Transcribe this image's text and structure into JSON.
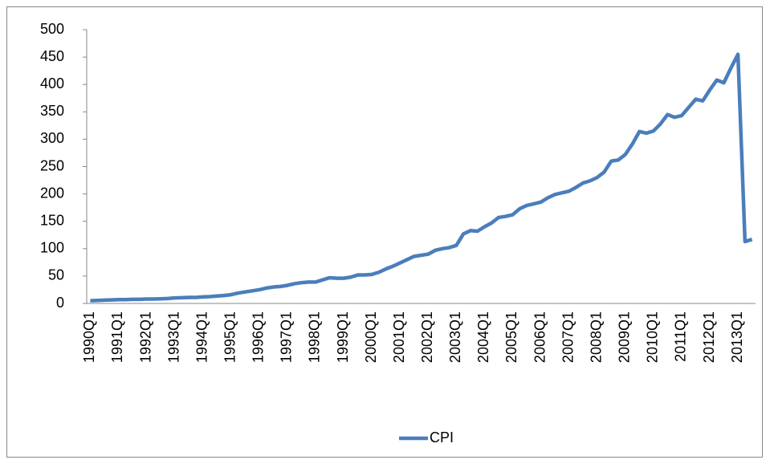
{
  "chart_data": {
    "type": "line",
    "categories": [
      "1990Q1",
      null,
      null,
      null,
      "1991Q1",
      null,
      null,
      null,
      "1992Q1",
      null,
      null,
      null,
      "1993Q1",
      null,
      null,
      null,
      "1994Q1",
      null,
      null,
      null,
      "1995Q1",
      null,
      null,
      null,
      "1996Q1",
      null,
      null,
      null,
      "1997Q1",
      null,
      null,
      null,
      "1998Q1",
      null,
      null,
      null,
      "1999Q1",
      null,
      null,
      null,
      "2000Q1",
      null,
      null,
      null,
      "2001Q1",
      null,
      null,
      null,
      "2002Q1",
      null,
      null,
      null,
      "2003Q1",
      null,
      null,
      null,
      "2004Q1",
      null,
      null,
      null,
      "2005Q1",
      null,
      null,
      null,
      "2006Q1",
      null,
      null,
      null,
      "2007Q1",
      null,
      null,
      null,
      "2008Q1",
      null,
      null,
      null,
      "2009Q1",
      null,
      null,
      null,
      "2010Q1",
      null,
      null,
      null,
      "2011Q1",
      null,
      null,
      null,
      "2012Q1",
      null,
      null,
      null,
      "2013Q1",
      null,
      null
    ],
    "series": [
      {
        "name": "CPI",
        "color": "#4a7ebb",
        "values": [
          5,
          5.5,
          6,
          6.5,
          7,
          7,
          7.5,
          7.5,
          8,
          8,
          8.5,
          9,
          10,
          10.5,
          11,
          11,
          12,
          12.5,
          13.5,
          14.5,
          16,
          19,
          21,
          23,
          25,
          28,
          30,
          31,
          33,
          36,
          38,
          39,
          39,
          43,
          47,
          46,
          46,
          48,
          52,
          52,
          53,
          57,
          63,
          68,
          74,
          80,
          86,
          88,
          90,
          97,
          100,
          102,
          106,
          127,
          133,
          132,
          140,
          147,
          157,
          159,
          162,
          173,
          179,
          182,
          185,
          193,
          199,
          202,
          205,
          212,
          220,
          224,
          230,
          240,
          260,
          262,
          272,
          291,
          314,
          311,
          315,
          328,
          345,
          340,
          343,
          358,
          373,
          370,
          390,
          408,
          403,
          430,
          455,
          113,
          117
        ]
      }
    ],
    "ylim": [
      0,
      500
    ],
    "yticks": [
      0,
      50,
      100,
      150,
      200,
      250,
      300,
      350,
      400,
      450,
      500
    ],
    "legend": "bottom"
  }
}
